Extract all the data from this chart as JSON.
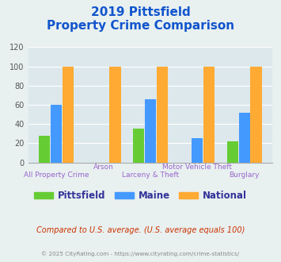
{
  "title_line1": "2019 Pittsfield",
  "title_line2": "Property Crime Comparison",
  "categories": [
    "All Property Crime",
    "Arson",
    "Larceny & Theft",
    "Motor Vehicle Theft",
    "Burglary"
  ],
  "cat_row": [
    2,
    1,
    2,
    1,
    2
  ],
  "pittsfield": [
    28,
    0,
    35,
    0,
    22
  ],
  "maine": [
    60,
    0,
    66,
    25,
    52
  ],
  "national": [
    100,
    100,
    100,
    100,
    100
  ],
  "color_pittsfield": "#66cc33",
  "color_maine": "#4499ff",
  "color_national": "#ffaa33",
  "ylim": [
    0,
    120
  ],
  "yticks": [
    0,
    20,
    40,
    60,
    80,
    100,
    120
  ],
  "fig_bg": "#e8f0f0",
  "plot_bg": "#dce8ec",
  "title_color": "#1155cc",
  "subtitle_note": "Compared to U.S. average. (U.S. average equals 100)",
  "footer": "© 2025 CityRating.com - https://www.cityrating.com/crime-statistics/",
  "note_color": "#cc3300",
  "footer_color": "#888888",
  "label_color": "#9966cc",
  "legend_text_color": "#333399"
}
